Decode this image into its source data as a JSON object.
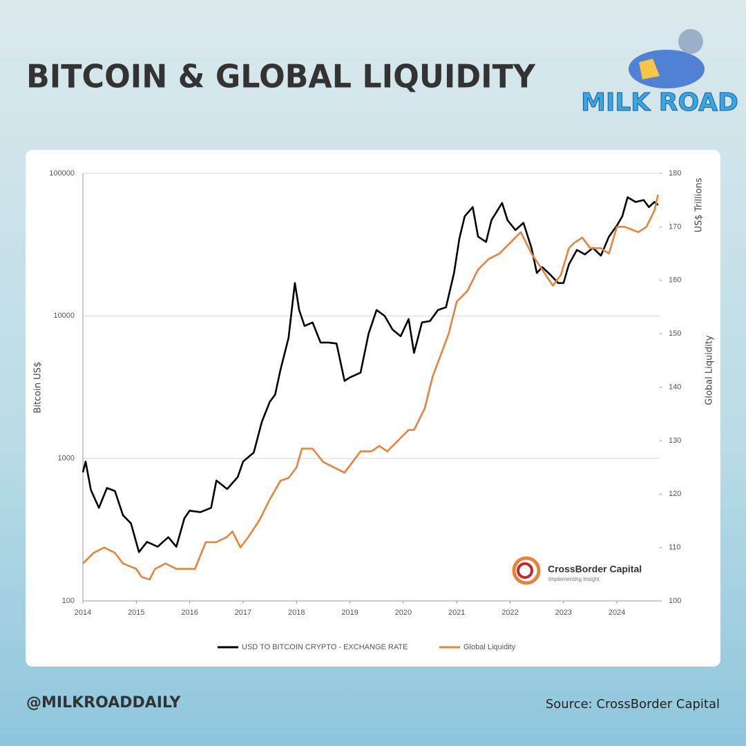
{
  "header": {
    "title": "BITCOIN & GLOBAL LIQUIDITY",
    "logo": "MILK ROAD"
  },
  "footer": {
    "handle": "@MILKROADDAILY",
    "source": "Source: CrossBorder Capital"
  },
  "watermark": {
    "name": "CrossBorder Capital",
    "tagline": "Implementing Insight"
  },
  "chart_data": {
    "type": "line",
    "ylabel": "Bitcoin US$",
    "y2label": "Global Liquidity",
    "y2unit": "US$ Trillions",
    "xlim": [
      2014,
      2024.8
    ],
    "xticks": [
      2014,
      2015,
      2016,
      2017,
      2018,
      2019,
      2020,
      2021,
      2022,
      2023,
      2024
    ],
    "ylim": [
      100,
      100000
    ],
    "yticks": [
      100,
      1000,
      10000,
      100000
    ],
    "ylog": true,
    "grid": true,
    "y2lim": [
      100,
      180
    ],
    "y2ticks": [
      100,
      110,
      120,
      130,
      140,
      150,
      160,
      170,
      180
    ],
    "legend": "bottom",
    "series": [
      {
        "name": "USD TO BITCOIN CRYPTO - EXCHANGE RATE",
        "color": "#000000",
        "x": [
          2014.0,
          2014.05,
          2014.15,
          2014.3,
          2014.45,
          2014.6,
          2014.75,
          2014.9,
          2015.05,
          2015.2,
          2015.4,
          2015.6,
          2015.75,
          2015.9,
          2016.0,
          2016.2,
          2016.4,
          2016.5,
          2016.7,
          2016.9,
          2017.0,
          2017.2,
          2017.35,
          2017.5,
          2017.6,
          2017.7,
          2017.85,
          2017.97,
          2018.05,
          2018.15,
          2018.3,
          2018.45,
          2018.6,
          2018.75,
          2018.9,
          2019.0,
          2019.2,
          2019.35,
          2019.5,
          2019.65,
          2019.8,
          2019.95,
          2020.1,
          2020.2,
          2020.35,
          2020.5,
          2020.65,
          2020.8,
          2020.95,
          2021.05,
          2021.15,
          2021.3,
          2021.4,
          2021.55,
          2021.65,
          2021.85,
          2021.95,
          2022.1,
          2022.25,
          2022.4,
          2022.5,
          2022.6,
          2022.75,
          2022.9,
          2023.0,
          2023.1,
          2023.25,
          2023.4,
          2023.55,
          2023.7,
          2023.85,
          2024.0,
          2024.1,
          2024.2,
          2024.35,
          2024.5,
          2024.6,
          2024.7,
          2024.77
        ],
        "values": [
          800,
          950,
          600,
          450,
          620,
          590,
          400,
          350,
          220,
          260,
          240,
          280,
          240,
          380,
          430,
          420,
          450,
          700,
          610,
          740,
          950,
          1100,
          1800,
          2500,
          2800,
          4200,
          7000,
          17000,
          11000,
          8500,
          9000,
          6500,
          6500,
          6400,
          3500,
          3700,
          4000,
          7500,
          11000,
          10000,
          8000,
          7200,
          9500,
          5500,
          9000,
          9200,
          11000,
          11500,
          20000,
          35000,
          50000,
          58000,
          36000,
          33000,
          47000,
          62000,
          47000,
          40000,
          45000,
          30000,
          20000,
          22000,
          19500,
          17000,
          17000,
          23000,
          29000,
          27000,
          30000,
          26500,
          36000,
          43000,
          50000,
          68000,
          63000,
          65000,
          58000,
          63000,
          60000
        ]
      },
      {
        "name": "Global Liquidity",
        "color": "#e8823a",
        "axis": "y2",
        "x": [
          2014.0,
          2014.2,
          2014.4,
          2014.6,
          2014.75,
          2015.0,
          2015.1,
          2015.25,
          2015.35,
          2015.55,
          2015.75,
          2015.9,
          2016.1,
          2016.3,
          2016.5,
          2016.7,
          2016.8,
          2016.95,
          2017.1,
          2017.3,
          2017.5,
          2017.7,
          2017.85,
          2018.0,
          2018.1,
          2018.3,
          2018.5,
          2018.7,
          2018.9,
          2019.05,
          2019.2,
          2019.4,
          2019.55,
          2019.7,
          2019.9,
          2020.1,
          2020.2,
          2020.4,
          2020.55,
          2020.7,
          2020.85,
          2021.0,
          2021.2,
          2021.4,
          2021.6,
          2021.8,
          2022.0,
          2022.2,
          2022.4,
          2022.6,
          2022.8,
          2022.95,
          2023.1,
          2023.2,
          2023.35,
          2023.5,
          2023.7,
          2023.85,
          2024.0,
          2024.15,
          2024.4,
          2024.55,
          2024.7,
          2024.77
        ],
        "values": [
          107,
          109,
          110,
          109,
          107,
          106,
          104.5,
          104,
          106,
          107,
          106,
          106,
          106,
          111,
          111,
          112,
          113,
          110,
          112,
          115,
          119,
          122.5,
          123,
          125,
          128.5,
          128.5,
          126,
          125,
          124,
          126,
          128,
          128,
          129,
          128,
          130,
          132,
          132,
          136,
          142,
          146,
          150,
          156,
          158,
          162,
          164,
          165,
          167,
          169,
          165,
          162,
          159,
          161,
          166,
          167,
          168,
          166,
          166,
          165,
          170,
          170,
          169,
          170,
          173,
          176
        ]
      }
    ]
  }
}
